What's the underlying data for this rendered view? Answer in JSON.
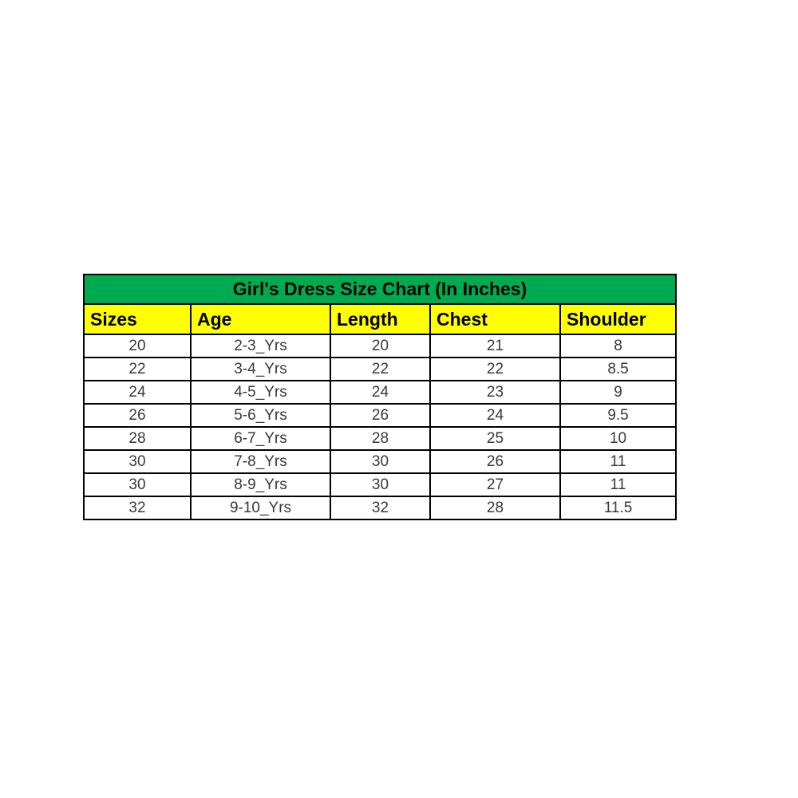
{
  "title": "Girl's Dress Size Chart (In Inches)",
  "colors": {
    "title_bar_green": "#00ab4f",
    "header_row_yellow": "#ffff00",
    "border_black": "#000000",
    "data_text": "#3a3741"
  },
  "chart_data": {
    "type": "table",
    "title": "Girl's Dress Size Chart (In Inches)",
    "columns": [
      "Sizes",
      "Age",
      "Length",
      "Chest",
      "Shoulder"
    ],
    "rows": [
      [
        "20",
        "2-3_Yrs",
        "20",
        "21",
        "8"
      ],
      [
        "22",
        "3-4_Yrs",
        "22",
        "22",
        "8.5"
      ],
      [
        "24",
        "4-5_Yrs",
        "24",
        "23",
        "9"
      ],
      [
        "26",
        "5-6_Yrs",
        "26",
        "24",
        "9.5"
      ],
      [
        "28",
        "6-7_Yrs",
        "28",
        "25",
        "10"
      ],
      [
        "30",
        "7-8_Yrs",
        "30",
        "26",
        "11"
      ],
      [
        "30",
        "8-9_Yrs",
        "30",
        "27",
        "11"
      ],
      [
        "32",
        "9-10_Yrs",
        "32",
        "28",
        "11.5"
      ]
    ]
  }
}
